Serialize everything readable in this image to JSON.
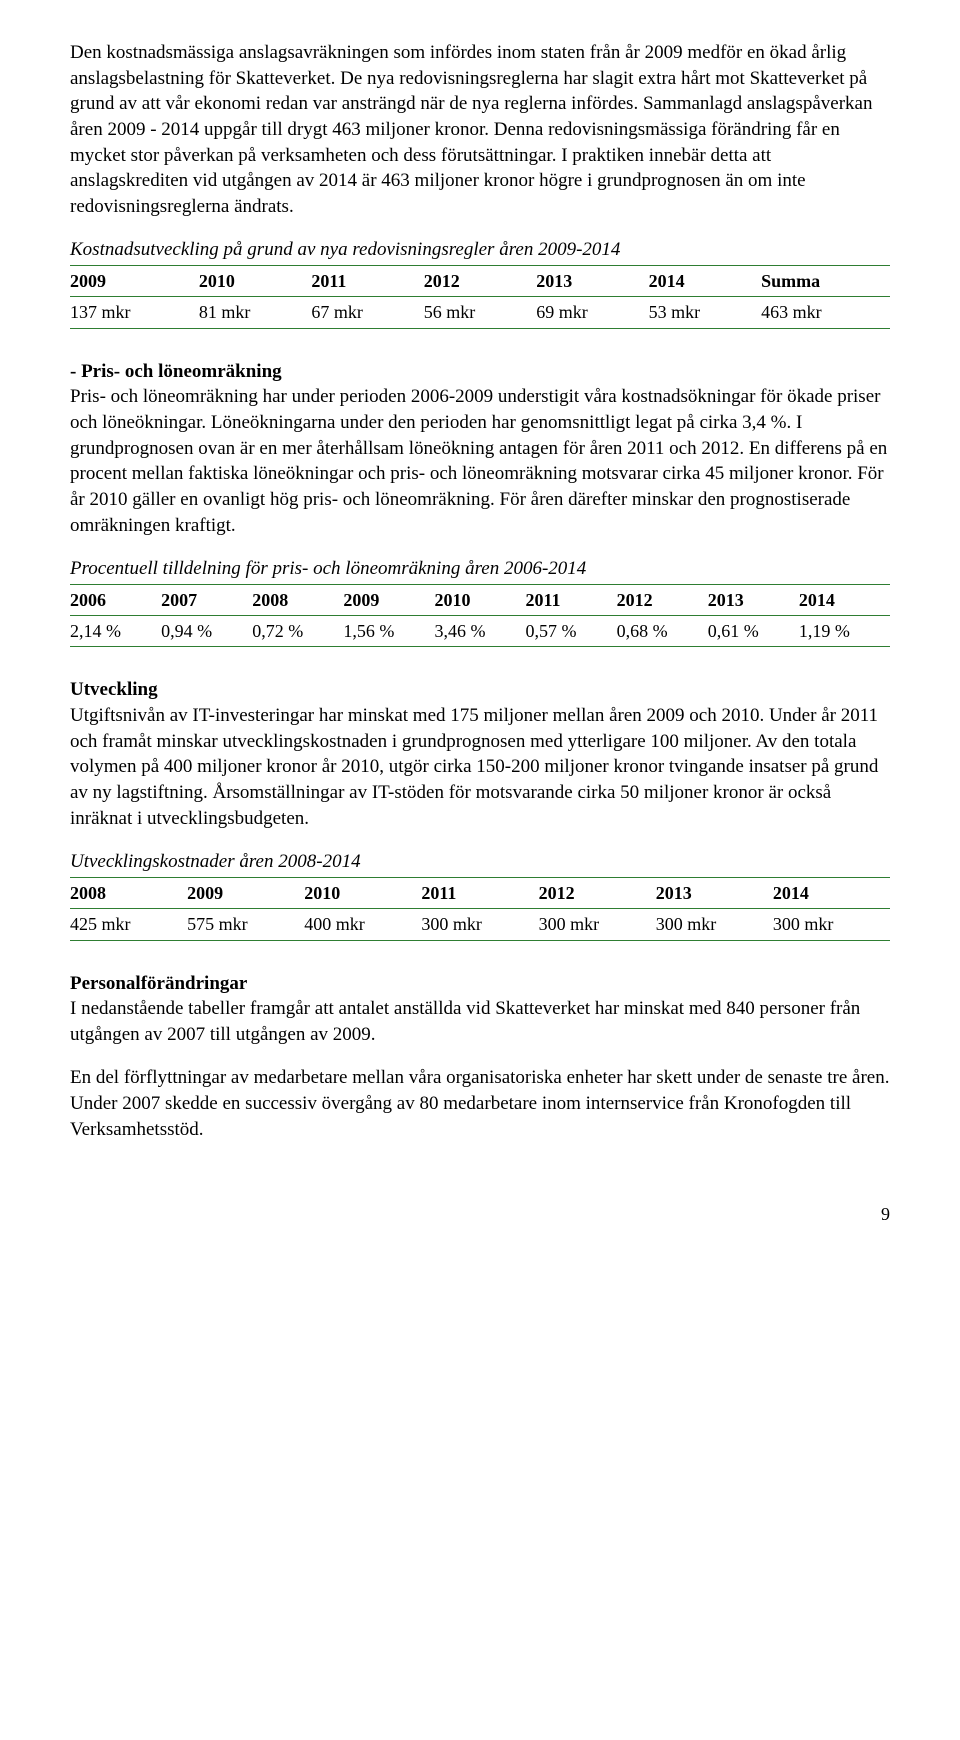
{
  "para1": "Den kostnadsmässiga anslagsavräkningen som infördes inom staten från år 2009 medför en ökad årlig anslagsbelastning för Skatteverket. De nya redovisningsreglerna har slagit extra hårt mot Skatteverket på grund av att vår ekonomi redan var ansträngd när de nya reglerna infördes. Sammanlagd anslagspåverkan åren 2009 - 2014 uppgår till drygt 463 miljoner kronor. Denna redovisningsmässiga förändring får en mycket stor påverkan på verksamheten och dess förutsättningar. I praktiken innebär detta att anslagskrediten vid utgången av 2014 är 463 miljoner kronor högre i grundprognosen än om inte redovisningsreglerna ändrats.",
  "table1": {
    "caption": "Kostnadsutveckling på grund av nya redovisningsregler åren 2009-2014",
    "headers": [
      "2009",
      "2010",
      "2011",
      "2012",
      "2013",
      "2014",
      "Summa"
    ],
    "row": [
      "137 mkr",
      "81 mkr",
      "67 mkr",
      "56 mkr",
      "69 mkr",
      "53 mkr",
      "463 mkr"
    ]
  },
  "sec2_heading": "- Pris- och löneomräkning",
  "para2": "Pris- och löneomräkning har under perioden 2006-2009 understigit våra kostnadsökningar för ökade priser och löneökningar. Löneökningarna under den perioden har genomsnittligt legat på cirka 3,4 %. I grundprognosen ovan är en mer återhållsam löneökning antagen för åren 2011 och 2012. En differens på en procent mellan faktiska löneökningar och pris- och löneomräkning motsvarar cirka 45 miljoner kronor. För år 2010 gäller en ovanligt hög pris- och löneomräkning. För åren därefter minskar den prognostiserade omräkningen kraftigt.",
  "table2": {
    "caption": "Procentuell tilldelning för pris- och löneomräkning åren 2006-2014",
    "headers": [
      "2006",
      "2007",
      "2008",
      "2009",
      "2010",
      "2011",
      "2012",
      "2013",
      "2014"
    ],
    "row": [
      "2,14 %",
      "0,94 %",
      "0,72 %",
      "1,56 %",
      "3,46 %",
      "0,57 %",
      "0,68 %",
      "0,61 %",
      "1,19 %"
    ]
  },
  "sec3_heading": "Utveckling",
  "para3": "Utgiftsnivån av IT-investeringar har minskat med 175 miljoner mellan åren 2009 och 2010. Under år 2011 och framåt minskar utvecklingskostnaden i grundprognosen med ytterligare 100 miljoner. Av den totala volymen på 400 miljoner kronor år 2010, utgör cirka 150-200 miljoner kronor tvingande insatser på grund av ny lagstiftning. Årsomställningar av IT-stöden för motsvarande cirka 50 miljoner kronor är också inräknat i utvecklingsbudgeten.",
  "table3": {
    "caption": "Utvecklingskostnader åren 2008-2014",
    "headers": [
      "2008",
      "2009",
      "2010",
      "2011",
      "2012",
      "2013",
      "2014"
    ],
    "row": [
      "425 mkr",
      "575 mkr",
      "400 mkr",
      "300 mkr",
      "300 mkr",
      "300 mkr",
      "300 mkr"
    ]
  },
  "sec4_heading": "Personalförändringar",
  "para4": "I nedanstående tabeller framgår att antalet anställda vid Skatteverket har minskat med 840 personer från utgången av 2007 till utgången av 2009.",
  "para5": "En del förflyttningar av medarbetare mellan våra organisatoriska enheter har skett under de senaste tre åren. Under 2007 skedde en successiv övergång av 80 medarbetare inom internservice från Kronofogden till Verksamhetsstöd.",
  "page_number": "9",
  "colors": {
    "table_border": "#2e7d32"
  }
}
